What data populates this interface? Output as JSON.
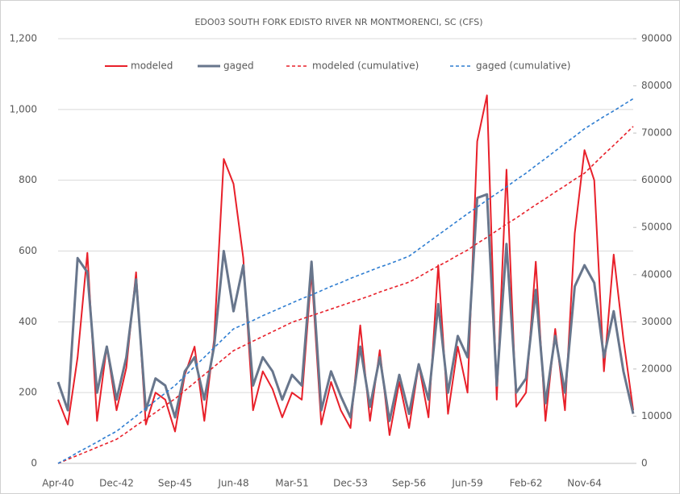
{
  "chart_data": {
    "type": "line",
    "title": "EDO03 SOUTH FORK EDISTO RIVER NR MONTMORENCI, SC (CFS)",
    "categories": [
      "Apr-40",
      null,
      null,
      null,
      null,
      null,
      "Dec-42",
      null,
      null,
      null,
      null,
      null,
      "Sep-45",
      null,
      null,
      null,
      null,
      null,
      "Jun-48",
      null,
      null,
      null,
      null,
      null,
      "Mar-51",
      null,
      null,
      null,
      null,
      null,
      "Dec-53",
      null,
      null,
      null,
      null,
      null,
      "Sep-56",
      null,
      null,
      null,
      null,
      null,
      "Jun-59",
      null,
      null,
      null,
      null,
      null,
      "Feb-62",
      null,
      null,
      null,
      null,
      null,
      "Nov-64",
      null,
      null,
      null,
      null,
      null
    ],
    "series": [
      {
        "name": "modeled",
        "color": "#e8202a",
        "dashed": false,
        "values": [
          180,
          110,
          300,
          595,
          120,
          330,
          150,
          270,
          540,
          110,
          200,
          180,
          90,
          250,
          330,
          120,
          350,
          860,
          790,
          580,
          150,
          260,
          210,
          130,
          200,
          180,
          540,
          110,
          230,
          150,
          100,
          390,
          120,
          320,
          80,
          230,
          100,
          280,
          130,
          560,
          140,
          330,
          200,
          910,
          1040,
          180,
          830,
          160,
          200,
          570,
          120,
          380,
          150,
          650,
          885,
          800,
          260,
          590,
          350,
          150
        ]
      },
      {
        "name": "gaged",
        "color": "#68768c",
        "dashed": false,
        "values": [
          230,
          150,
          580,
          540,
          200,
          330,
          180,
          300,
          520,
          150,
          240,
          220,
          130,
          260,
          300,
          180,
          330,
          600,
          430,
          560,
          220,
          300,
          260,
          180,
          250,
          220,
          570,
          150,
          260,
          190,
          130,
          330,
          160,
          300,
          120,
          250,
          140,
          280,
          180,
          450,
          200,
          360,
          300,
          750,
          760,
          220,
          620,
          200,
          240,
          490,
          170,
          360,
          200,
          500,
          560,
          510,
          300,
          430,
          260,
          140
        ]
      },
      {
        "name": "modeled (cumulative)",
        "color": "#e8202a",
        "dashed": true,
        "axis": "y2",
        "values": [
          0,
          850,
          1700,
          2550,
          3400,
          4250,
          5100,
          6500,
          8000,
          9400,
          10800,
          12300,
          13700,
          15400,
          17100,
          18800,
          20500,
          22200,
          23900,
          24900,
          25900,
          26900,
          27900,
          28900,
          29900,
          30600,
          31300,
          32000,
          32700,
          33400,
          34100,
          34800,
          35500,
          36300,
          37000,
          37700,
          38400,
          39500,
          40700,
          41800,
          42900,
          44100,
          45200,
          46600,
          47900,
          49300,
          50700,
          52000,
          53400,
          54800,
          56100,
          57500,
          58800,
          60200,
          61500,
          63500,
          65500,
          67400,
          69400,
          71400
        ]
      },
      {
        "name": "gaged (cumulative)",
        "color": "#2e7dd1",
        "dashed": true,
        "axis": "y2",
        "values": [
          0,
          1100,
          2300,
          3400,
          4500,
          5700,
          6800,
          8400,
          10000,
          11700,
          13300,
          14900,
          16500,
          18500,
          20500,
          22500,
          24500,
          26500,
          28500,
          29400,
          30300,
          31300,
          32200,
          33100,
          34000,
          34900,
          35700,
          36600,
          37500,
          38300,
          39200,
          40000,
          40800,
          41600,
          42300,
          43100,
          43900,
          45400,
          46900,
          48400,
          49900,
          51400,
          52900,
          54300,
          55800,
          57200,
          58600,
          60100,
          61500,
          63100,
          64600,
          66200,
          67800,
          69300,
          70900,
          72200,
          73500,
          74700,
          76000,
          77300
        ]
      }
    ],
    "ylim": [
      0,
      1200
    ],
    "yticks": [
      0,
      200,
      400,
      600,
      800,
      {
        "value": 1000,
        "label": "1,000"
      },
      {
        "value": 1200,
        "label": "1,200"
      }
    ],
    "y2lim": [
      0,
      90000
    ],
    "y2ticks": [
      0,
      10000,
      20000,
      30000,
      40000,
      50000,
      60000,
      70000,
      80000,
      90000
    ],
    "grid": true,
    "legend": "top"
  }
}
